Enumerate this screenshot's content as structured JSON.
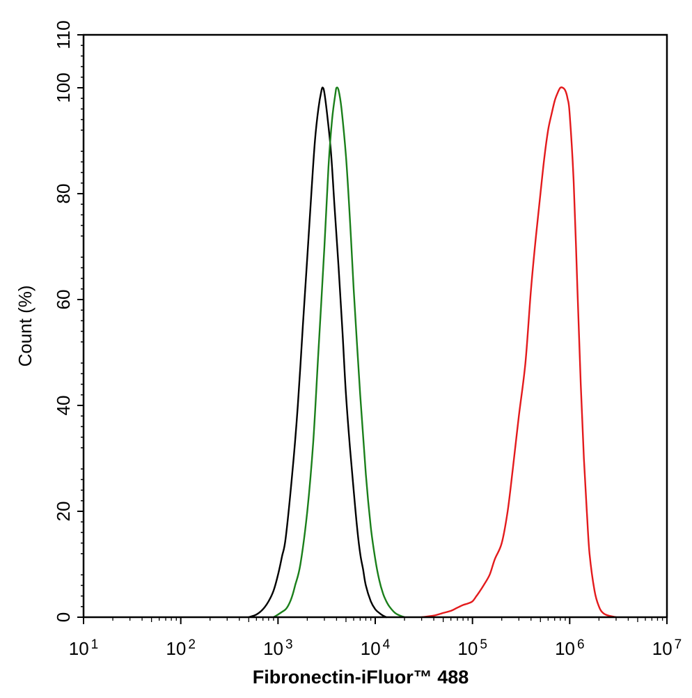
{
  "chart_data": {
    "type": "line",
    "xlabel": "Fibronectin-iFluor™ 488",
    "ylabel": "Count  (%)",
    "x_scale": "log",
    "xlim": [
      10,
      10000000
    ],
    "ylim": [
      0,
      110
    ],
    "y_ticks": [
      0,
      20,
      40,
      60,
      80,
      100,
      110
    ],
    "x_ticks": [
      {
        "value": 10,
        "base": "10",
        "exp": "1"
      },
      {
        "value": 100,
        "base": "10",
        "exp": "2"
      },
      {
        "value": 1000,
        "base": "10",
        "exp": "3"
      },
      {
        "value": 10000,
        "base": "10",
        "exp": "4"
      },
      {
        "value": 100000,
        "base": "10",
        "exp": "5"
      },
      {
        "value": 1000000,
        "base": "10",
        "exp": "6"
      },
      {
        "value": 10000000,
        "base": "10",
        "exp": "7"
      }
    ],
    "grid": false,
    "series": [
      {
        "color": "#000000",
        "x": [
          500,
          600,
          700,
          800,
          900,
          1000,
          1100,
          1200,
          1400,
          1600,
          1800,
          2000,
          2200,
          2400,
          2600,
          2800,
          2900,
          3000,
          3200,
          3500,
          3800,
          4200,
          4600,
          5000,
          5500,
          6000,
          6500,
          7000,
          7500,
          8000,
          9000,
          10000,
          11000,
          12000,
          13000
        ],
        "y": [
          0,
          0.5,
          1.5,
          3,
          5,
          8,
          11.5,
          15,
          27,
          40,
          55,
          68,
          80,
          90,
          96,
          99.5,
          100,
          99,
          95,
          88,
          78,
          66,
          54,
          42,
          32,
          24,
          17,
          12,
          9,
          6,
          3,
          1.5,
          0.8,
          0.3,
          0
        ]
      },
      {
        "color": "#1a7f1a",
        "x": [
          900,
          1000,
          1100,
          1200,
          1300,
          1400,
          1500,
          1700,
          2000,
          2300,
          2600,
          3000,
          3300,
          3600,
          3900,
          4000,
          4200,
          4500,
          5000,
          5500,
          6000,
          7000,
          8000,
          9000,
          10000,
          11000,
          12000,
          13000,
          14000,
          16000,
          18000,
          20000
        ],
        "y": [
          0,
          0.5,
          1,
          1.5,
          2.5,
          4,
          6,
          10,
          20,
          33,
          50,
          70,
          85,
          94,
          99,
          100,
          99.5,
          96,
          87,
          75,
          62,
          42,
          27,
          17,
          11,
          7,
          4.5,
          3,
          2,
          0.8,
          0.3,
          0
        ]
      },
      {
        "color": "#e31a1c",
        "x": [
          30000,
          40000,
          50000,
          60000,
          70000,
          80000,
          90000,
          100000,
          110000,
          120000,
          130000,
          150000,
          170000,
          200000,
          230000,
          260000,
          300000,
          350000,
          400000,
          450000,
          500000,
          550000,
          600000,
          650000,
          700000,
          750000,
          800000,
          850000,
          900000,
          950000,
          1000000,
          1100000,
          1200000,
          1300000,
          1400000,
          1500000,
          1600000,
          1800000,
          2000000,
          2200000,
          2500000,
          3000000
        ],
        "y": [
          0,
          0.3,
          0.8,
          1.2,
          1.8,
          2.3,
          2.6,
          3,
          4,
          5,
          6,
          8,
          11,
          14,
          20,
          28,
          38,
          48,
          62,
          72,
          80,
          87,
          92,
          95,
          97.5,
          99,
          100,
          100,
          99.5,
          98,
          95,
          82,
          62,
          44,
          30,
          20,
          12,
          5,
          2,
          0.8,
          0.3,
          0
        ]
      }
    ]
  }
}
